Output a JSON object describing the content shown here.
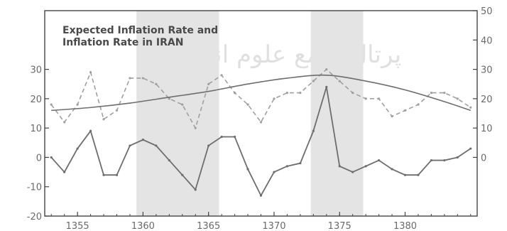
{
  "chart_data": {
    "type": "line",
    "title_lines": [
      "Expected Inflation Rate and",
      "Inflation Rate in IRAN"
    ],
    "watermark": "پرتال جامع علوم انسانی",
    "x_ticks": [
      "1355",
      "1360",
      "1365",
      "1370",
      "1375",
      "1380"
    ],
    "xlim": [
      1352.5,
      1385.5
    ],
    "left_axis": {
      "ticks": [
        "-20",
        "-10",
        "0",
        "10",
        "20",
        "30"
      ],
      "ylim": [
        -20,
        50
      ]
    },
    "right_axis": {
      "ticks": [
        "0",
        "10",
        "20",
        "30",
        "40",
        "50"
      ],
      "ylim": [
        -20,
        50
      ]
    },
    "shaded_periods": [
      [
        1359.5,
        1365.8
      ],
      [
        1372.8,
        1376.8
      ]
    ],
    "grid": false,
    "colors": {
      "shade": "#e4e4e4",
      "series_main": "#6e6e6e",
      "series_light": "#a0a0a0"
    },
    "series": [
      {
        "style": "solid",
        "x": [
          1353,
          1354,
          1355,
          1356,
          1357,
          1358,
          1359,
          1360,
          1361,
          1362,
          1363,
          1364,
          1365,
          1366,
          1367,
          1368,
          1369,
          1370,
          1371,
          1372,
          1373,
          1374,
          1375,
          1376,
          1377,
          1378,
          1379,
          1380,
          1381,
          1382,
          1383,
          1384,
          1385
        ],
        "values": [
          0,
          -5,
          3,
          9,
          -6,
          -6,
          4,
          6,
          4,
          -1,
          -6,
          -11,
          4,
          7,
          7,
          -4,
          -13,
          -5,
          -3,
          -2,
          9,
          24,
          -3,
          -5,
          -3,
          -1,
          -4,
          -6,
          -6,
          -1,
          -1,
          0,
          3
        ]
      },
      {
        "style": "dashed",
        "x": [
          1353,
          1354,
          1355,
          1356,
          1357,
          1358,
          1359,
          1360,
          1361,
          1362,
          1363,
          1364,
          1365,
          1366,
          1367,
          1368,
          1369,
          1370,
          1371,
          1372,
          1373,
          1374,
          1375,
          1376,
          1377,
          1378,
          1379,
          1380,
          1381,
          1382,
          1383,
          1384,
          1385
        ],
        "values": [
          18,
          12,
          18,
          29,
          13,
          16,
          27,
          27,
          25,
          20,
          18,
          10,
          25,
          28,
          22,
          18,
          12,
          20,
          22,
          22,
          26,
          30,
          26,
          22,
          20,
          20,
          14,
          16,
          18,
          22,
          22,
          20,
          17
        ]
      },
      {
        "style": "smooth",
        "x": [
          1353,
          1356,
          1359,
          1362,
          1365,
          1368,
          1371,
          1374,
          1377,
          1380,
          1383,
          1385
        ],
        "values": [
          16,
          17,
          18.5,
          20.5,
          22.5,
          25,
          27,
          28,
          26,
          23,
          19,
          16
        ]
      }
    ]
  }
}
